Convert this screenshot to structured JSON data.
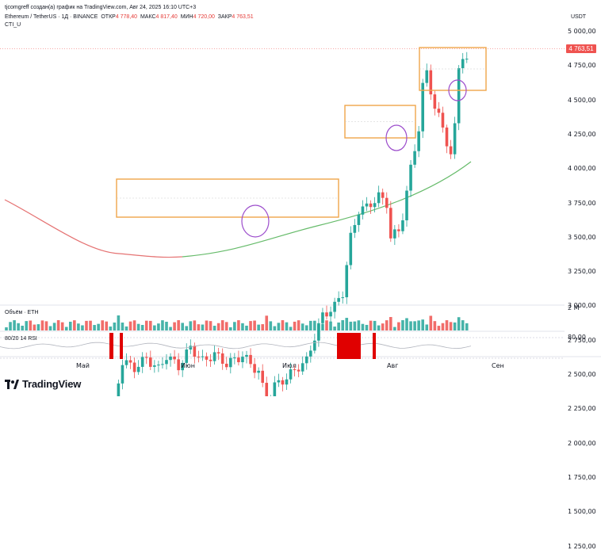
{
  "header": {
    "author_line": "tjcomgreff создан(а) график на TradingView.com, Авг 24, 2025 16:10 UTC+3",
    "symbol": "Ethereum / TetherUS · 1Д · BINANCE",
    "ohlc": [
      {
        "k": "ОТКР",
        "v": "4 778,40"
      },
      {
        "k": "МАКС",
        "v": "4 817,40"
      },
      {
        "k": "МИН",
        "v": "4 720,00"
      },
      {
        "k": "ЗАКР",
        "v": "4 763,51"
      }
    ],
    "indicator": "CTI_U"
  },
  "axis": {
    "currency": "USDT",
    "price_ticks": [
      "5 000,00",
      "4 750,00",
      "4 500,00",
      "4 250,00",
      "4 000,00",
      "3 750,00",
      "3 500,00",
      "3 250,00",
      "3 000,00",
      "2 750,00",
      "2 500,00",
      "2 250,00",
      "2 000,00",
      "1 750,00",
      "1 500,00",
      "1 250,00"
    ],
    "last_price": "4 763,51",
    "volume_tick": "2 M",
    "rsi_tick": "80,00",
    "time_ticks": [
      "Май",
      "Июн",
      "Июл",
      "Авг",
      "Сен"
    ]
  },
  "panes": {
    "volume_label": "Объём · ETH",
    "rsi_label": "80/20 14 RSI"
  },
  "colors": {
    "up": "#26a69a",
    "down": "#ef5350",
    "box": "#f0a54a",
    "circle": "#9c4dcc",
    "ma_red": "#e57373",
    "ma_green": "#66bb6a",
    "rsi_hit": "#e00000"
  },
  "branding": {
    "logo_text": "TradingView",
    "logo_icon": "tradingview-logo-icon"
  }
}
